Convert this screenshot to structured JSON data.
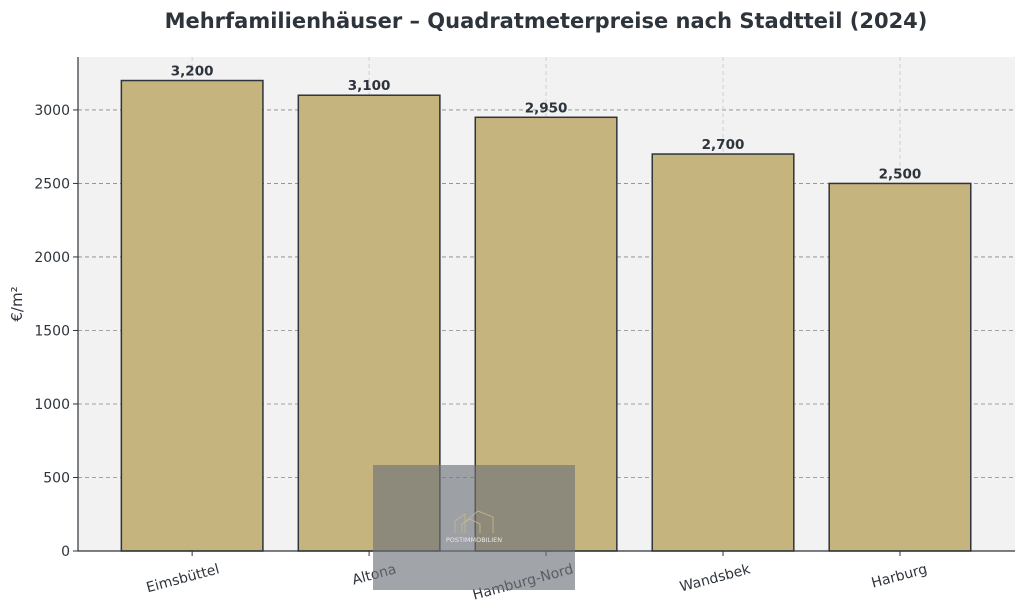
{
  "chart_data": {
    "type": "bar",
    "title": "Mehrfamilienhäuser – Quadratmeterpreise nach Stadtteil (2024)",
    "xlabel": "",
    "ylabel": "€/m²",
    "categories": [
      "Eimsbüttel",
      "Altona",
      "Hamburg-Nord",
      "Wandsbek",
      "Harburg"
    ],
    "values": [
      3200,
      3100,
      2950,
      2700,
      2500
    ],
    "data_labels": [
      "3,200",
      "3,100",
      "2,950",
      "2,700",
      "2,500"
    ],
    "ylim": [
      0,
      3360
    ],
    "yticks": [
      0,
      500,
      1000,
      1500,
      2000,
      2500,
      3000
    ],
    "grid": true,
    "bar_color": "#c6b47e",
    "edge_color": "#2e343b",
    "plot_background": "#f2f2f2"
  },
  "watermark": {
    "text": "POSTIMMOBILIEN"
  }
}
